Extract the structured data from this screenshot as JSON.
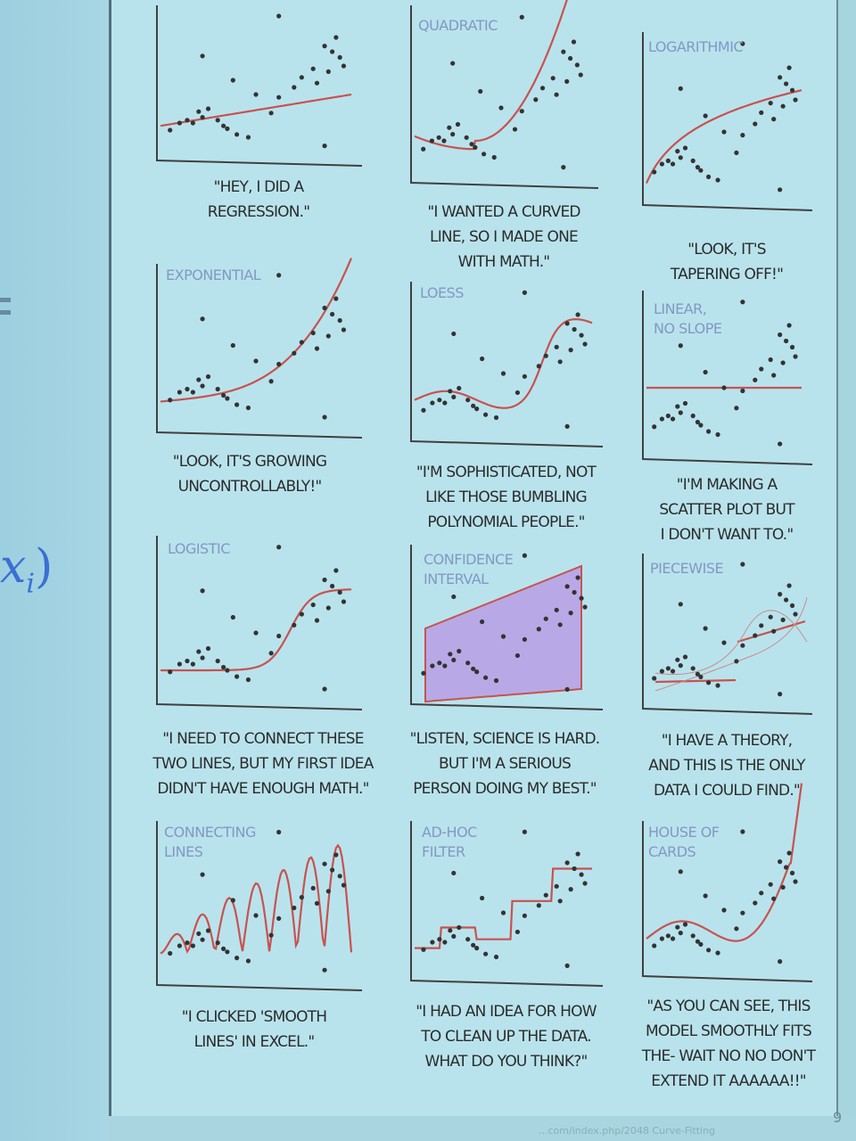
{
  "slide": {
    "formula_fragment": "x",
    "formula_subscript": "i",
    "formula_paren": ")",
    "page_number": "9",
    "footer_credit": "...com/index.php/2048  Curve-Fitting"
  },
  "colors": {
    "curve": "#c8524f",
    "confidence_band": "#b8a9e6",
    "axis": "#404040",
    "point": "#333333"
  },
  "panels": [
    {
      "id": "linear",
      "title": "",
      "caption": "\"HEY, I DID A\nREGRESSION.\""
    },
    {
      "id": "quadratic",
      "title": "QUADRATIC",
      "caption": "\"I WANTED A CURVED\nLINE, SO I MADE ONE\nWITH MATH.\""
    },
    {
      "id": "logarithmic",
      "title": "LOGARITHMIC",
      "caption": "\"LOOK, IT'S\nTAPERING OFF!\""
    },
    {
      "id": "exponential",
      "title": "EXPONENTIAL",
      "caption": "\"LOOK, IT'S GROWING\nUNCONTROLLABLY!\""
    },
    {
      "id": "loess",
      "title": "LOESS",
      "caption": "\"I'M SOPHISTICATED, NOT\nLIKE THOSE BUMBLING\nPOLYNOMIAL PEOPLE.\""
    },
    {
      "id": "linear-no-slope",
      "title": "LINEAR,\nNO SLOPE",
      "caption": "\"I'M MAKING A\nSCATTER PLOT BUT\nI DON'T WANT TO.\""
    },
    {
      "id": "logistic",
      "title": "LOGISTIC",
      "caption": "\"I NEED TO CONNECT THESE\nTWO LINES, BUT MY FIRST IDEA\nDIDN'T HAVE ENOUGH MATH.\""
    },
    {
      "id": "confidence-interval",
      "title": "CONFIDENCE\nINTERVAL",
      "caption": "\"LISTEN, SCIENCE IS HARD.\nBUT I'M A SERIOUS\nPERSON DOING MY BEST.\""
    },
    {
      "id": "piecewise",
      "title": "PIECEWISE",
      "caption": "\"I HAVE A THEORY,\nAND THIS IS THE ONLY\nDATA I COULD FIND.\""
    },
    {
      "id": "connecting-lines",
      "title": "CONNECTING\nLINES",
      "caption": "\"I CLICKED 'SMOOTH\nLINES' IN EXCEL.\""
    },
    {
      "id": "ad-hoc-filter",
      "title": "AD-HOC\nFILTER",
      "caption": "\"I HAD AN IDEA FOR HOW\nTO CLEAN UP THE DATA.\nWHAT DO YOU THINK?\""
    },
    {
      "id": "house-of-cards",
      "title": "HOUSE OF\nCARDS",
      "caption": "\"AS YOU CAN SEE, THIS\nMODEL SMOOTHLY FITS\nTHE- WAIT NO NO DON'T\nEXTEND IT AAAAAA!!\""
    }
  ]
}
